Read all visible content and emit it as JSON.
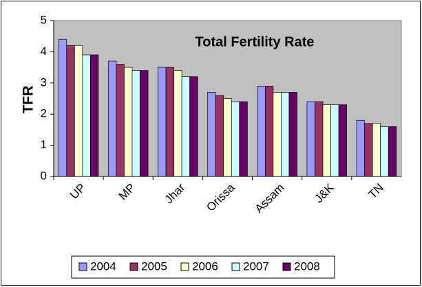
{
  "chart_data": {
    "type": "bar",
    "title": "Total Fertility Rate",
    "ylabel": "TFR",
    "categories": [
      "UP",
      "MP",
      "Jhar",
      "Orissa",
      "Assam",
      "J&K",
      "TN"
    ],
    "series": [
      {
        "name": "2004",
        "color": "#9999ff",
        "values": [
          4.4,
          3.7,
          3.5,
          2.7,
          2.9,
          2.4,
          1.8
        ]
      },
      {
        "name": "2005",
        "color": "#993366",
        "values": [
          4.2,
          3.6,
          3.5,
          2.6,
          2.9,
          2.4,
          1.7
        ]
      },
      {
        "name": "2006",
        "color": "#ffffcc",
        "values": [
          4.2,
          3.5,
          3.4,
          2.5,
          2.7,
          2.3,
          1.7
        ]
      },
      {
        "name": "2007",
        "color": "#ccffff",
        "values": [
          3.9,
          3.4,
          3.2,
          2.4,
          2.7,
          2.3,
          1.6
        ]
      },
      {
        "name": "2008",
        "color": "#660066",
        "values": [
          3.9,
          3.4,
          3.2,
          2.4,
          2.7,
          2.3,
          1.6
        ]
      }
    ],
    "ylim": [
      0,
      5
    ],
    "yticks": [
      0,
      1,
      2,
      3,
      4,
      5
    ],
    "legend": "bottom"
  }
}
